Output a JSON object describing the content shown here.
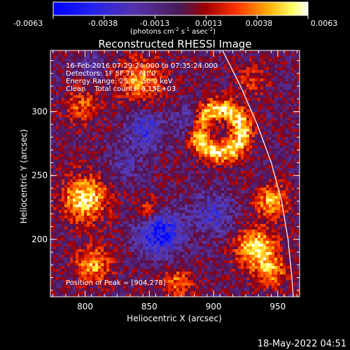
{
  "colorbar": {
    "ticks": [
      "-0.0063",
      "-0.0038",
      "-0.0013",
      "0.0013",
      "0.0038",
      "0.0063"
    ],
    "units_main": "(photons cm",
    "units_exp1": "-2",
    "units_mid": " s",
    "units_exp2": "-1",
    "units_tail": " asec",
    "units_exp3": "-2",
    "units_close": ")"
  },
  "chart_data": {
    "type": "heatmap",
    "title": "Reconstructed RHESSI Image",
    "xlabel": "Heliocentric X (arcsec)",
    "ylabel": "Heliocentric Y (arcsec)",
    "xlim": [
      773,
      967
    ],
    "ylim": [
      155,
      348
    ],
    "x_ticks": [
      800,
      850,
      900,
      950
    ],
    "y_ticks": [
      200,
      250,
      300
    ],
    "color_range": [
      -0.0063,
      0.0063
    ],
    "colormap": "rainbow-to-hot",
    "annotations": [
      "16-Feb-2016 07:29:24.000 to 07:35:24.000",
      "Detectors: 1F 5F 7F, Att 0",
      "Energy Range: 25.0 - 50.0 keV",
      "Clean    Total counts: 6.15E+03"
    ],
    "peak_label": "Position of Peak = [904,278]",
    "peak": [
      904,
      278
    ],
    "sources": [
      {
        "x": 905,
        "y": 285,
        "r": 27,
        "value": 0.0055,
        "kind": "ring"
      },
      {
        "x": 882,
        "y": 292,
        "r": 12,
        "value": -0.0035,
        "kind": "hole"
      },
      {
        "x": 800,
        "y": 232,
        "r": 18,
        "value": 0.0058
      },
      {
        "x": 806,
        "y": 180,
        "r": 14,
        "value": 0.0045
      },
      {
        "x": 933,
        "y": 193,
        "r": 16,
        "value": 0.0057
      },
      {
        "x": 945,
        "y": 230,
        "r": 13,
        "value": 0.0045
      },
      {
        "x": 945,
        "y": 175,
        "r": 12,
        "value": 0.004
      },
      {
        "x": 843,
        "y": 324,
        "r": 18,
        "value": 0.004
      },
      {
        "x": 850,
        "y": 223,
        "r": 10,
        "value": 0.0032
      },
      {
        "x": 872,
        "y": 166,
        "r": 12,
        "value": 0.0032
      },
      {
        "x": 797,
        "y": 305,
        "r": 14,
        "value": 0.0028
      },
      {
        "x": 930,
        "y": 325,
        "r": 12,
        "value": 0.0025
      },
      {
        "x": 858,
        "y": 205,
        "r": 18,
        "value": -0.0055
      },
      {
        "x": 847,
        "y": 285,
        "r": 16,
        "value": -0.0035
      },
      {
        "x": 900,
        "y": 220,
        "r": 18,
        "value": -0.0028
      },
      {
        "x": 830,
        "y": 258,
        "r": 14,
        "value": -0.002
      },
      {
        "x": 805,
        "y": 335,
        "r": 10,
        "value": -0.002
      }
    ],
    "limb": [
      [
        907,
        348
      ],
      [
        921,
        320
      ],
      [
        934,
        290
      ],
      [
        945,
        260
      ],
      [
        953,
        230
      ],
      [
        958,
        200
      ],
      [
        961,
        170
      ],
      [
        962,
        155
      ]
    ]
  },
  "footer": {
    "date": "18-May-2022 04:51"
  }
}
